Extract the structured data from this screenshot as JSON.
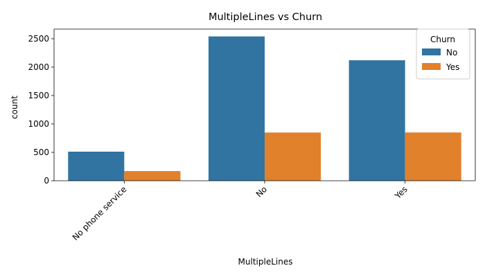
{
  "chart_data": {
    "type": "bar",
    "title": "MultipleLines vs Churn",
    "xlabel": "MultipleLines",
    "ylabel": "count",
    "categories": [
      "No phone service",
      "No",
      "Yes"
    ],
    "series": [
      {
        "name": "No",
        "color": "#3274a1",
        "values": [
          512,
          2541,
          2121
        ]
      },
      {
        "name": "Yes",
        "color": "#e1812c",
        "values": [
          170,
          849,
          850
        ]
      }
    ],
    "ylim": [
      0,
      2670
    ],
    "yticks": [
      0,
      500,
      1000,
      1500,
      2000,
      2500
    ],
    "grid": false,
    "legend": {
      "title": "Churn",
      "placement": "top-right"
    },
    "xtick_rotation_deg": 45
  }
}
